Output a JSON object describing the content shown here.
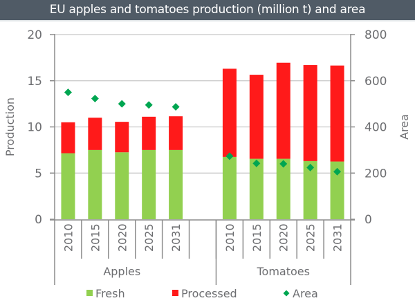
{
  "chart_data": {
    "type": "bar",
    "subtype": "stacked-bar-with-markers",
    "title": "EU apples and tomatoes production (million t) and area",
    "ylabel": "Production",
    "ylabel_right": "Area",
    "ylim": [
      0,
      20
    ],
    "ylim_right": [
      0,
      800
    ],
    "yticks": [
      0,
      5,
      10,
      15,
      20
    ],
    "yticks_right": [
      0,
      200,
      400,
      600,
      800
    ],
    "grid": true,
    "legend_position": "bottom",
    "groups": [
      {
        "name": "Apples",
        "categories": [
          "2010",
          "2015",
          "2020",
          "2025",
          "2031"
        ],
        "fresh": [
          7.15,
          7.5,
          7.25,
          7.5,
          7.5
        ],
        "processed": [
          3.35,
          3.5,
          3.3,
          3.6,
          3.65
        ],
        "area": [
          550,
          523,
          500,
          495,
          487
        ]
      },
      {
        "name": "Tomatoes",
        "categories": [
          "2010",
          "2015",
          "2020",
          "2025",
          "2031"
        ],
        "fresh": [
          6.75,
          6.55,
          6.55,
          6.3,
          6.25
        ],
        "processed": [
          9.55,
          9.1,
          10.4,
          10.4,
          10.4
        ],
        "area": [
          273,
          242,
          240,
          224,
          206
        ]
      }
    ],
    "series": [
      {
        "name": "Fresh",
        "type": "bar",
        "axis": "left",
        "color": "#92d050"
      },
      {
        "name": "Processed",
        "type": "bar",
        "axis": "left",
        "color": "#ff1a1a"
      },
      {
        "name": "Area",
        "type": "marker",
        "marker": "diamond",
        "axis": "right",
        "color": "#00a651"
      }
    ]
  }
}
